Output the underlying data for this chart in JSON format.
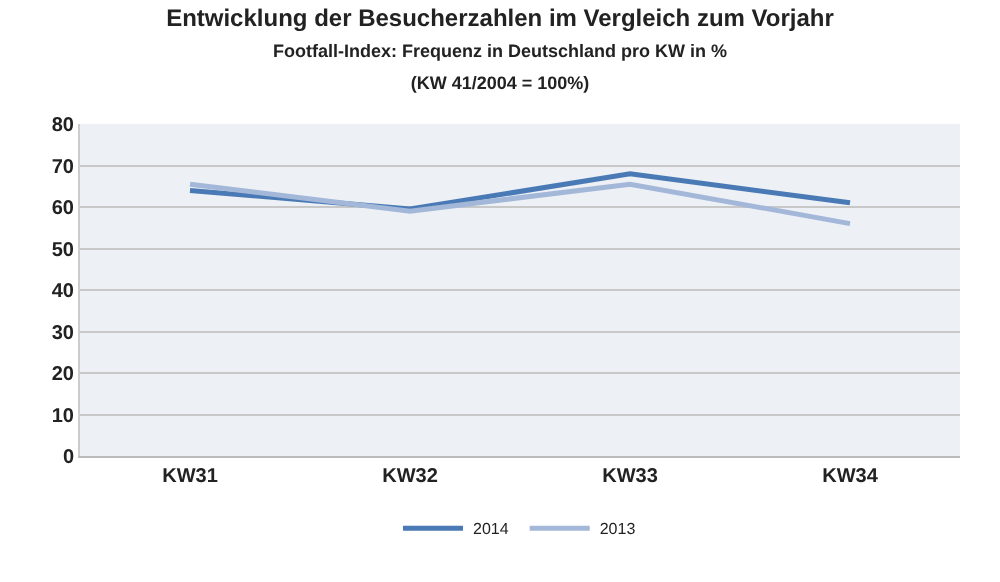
{
  "chart_data": {
    "type": "line",
    "title": "Entwicklung der Besucherzahlen im Vergleich zum Vorjahr",
    "subtitle": "Footfall-Index: Frequenz in Deutschland pro KW in %\n(KW 41/2004 = 100%)",
    "categories": [
      "KW31",
      "KW32",
      "KW33",
      "KW34"
    ],
    "series": [
      {
        "name": "2014",
        "color": "#4a7ab5",
        "values": [
          64,
          59.5,
          68,
          61
        ]
      },
      {
        "name": "2013",
        "color": "#a3b8d9",
        "values": [
          65.5,
          59,
          65.5,
          56
        ]
      }
    ],
    "ylim": [
      0,
      80
    ],
    "yticks": [
      0,
      10,
      20,
      30,
      40,
      50,
      60,
      70,
      80
    ],
    "grid": "y",
    "legend": "bottom",
    "marker": "none",
    "line_style": "solid"
  }
}
